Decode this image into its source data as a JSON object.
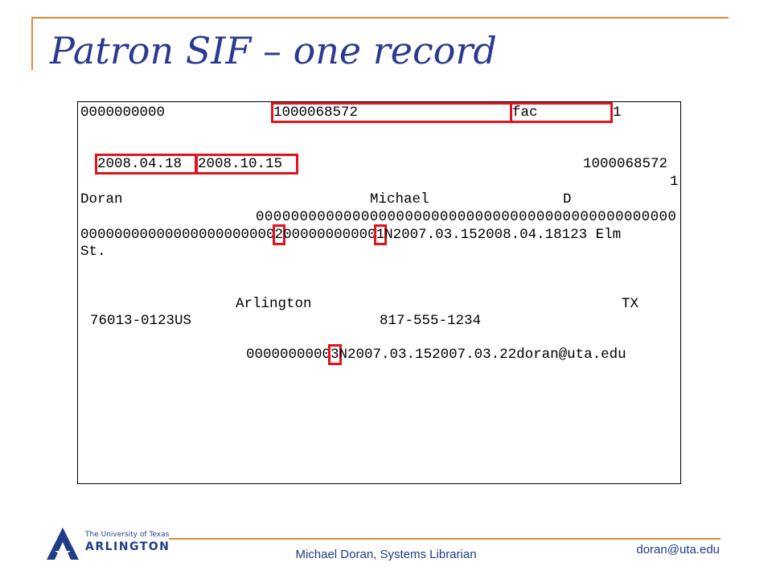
{
  "header": {
    "title": "Patron SIF – one record"
  },
  "record": {
    "lines": [
      [
        "0000000000",
        "1000068572",
        "fac",
        "1"
      ],
      [
        "2008.04.18",
        "2008.10.15",
        "1000068572"
      ],
      [
        "1"
      ],
      [
        "Doran",
        "Michael",
        "D"
      ],
      [
        "000000000000000000000000000000000000000000000000"
      ],
      [
        "00000000000000000000000",
        "2",
        "00000000000",
        "1",
        "N2007.03.152008.04.18123 Elm"
      ],
      [
        "St."
      ],
      [
        "Arlington",
        "TX"
      ],
      [
        "76013-0123US",
        "817-555-1234"
      ],
      [
        "0000000000",
        "3",
        "N2007.03.152007.03.22doran@uta.edu"
      ]
    ]
  },
  "footer": {
    "logo_line1": "The University of Texas",
    "logo_line2": "ARLINGTON",
    "presenter": "Michael Doran, Systems Librarian",
    "email": "doran@uta.edu"
  }
}
